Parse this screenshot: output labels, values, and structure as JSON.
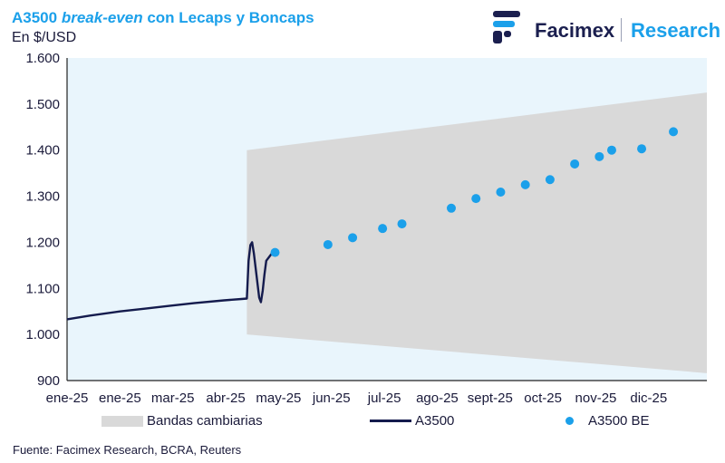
{
  "header": {
    "title_prefix": "A3500 ",
    "title_emph": "break-even",
    "title_suffix": " con Lecaps y Boncaps",
    "subtitle": "En $/USD"
  },
  "logo": {
    "brand": "Facimex",
    "research": "Research"
  },
  "source": "Fuente: Facimex Research, BCRA, Reuters",
  "legend": {
    "band": "Bandas cambiarias",
    "line": "A3500",
    "dots": "A3500 BE"
  },
  "colors": {
    "title": "#1ba0ea",
    "line": "#141b4d",
    "dots": "#1ba0ea",
    "band": "#d9d9d9",
    "plot_bg": "#e9f5fc"
  },
  "chart_data": {
    "type": "line",
    "ylim": [
      900,
      1600
    ],
    "yticks": [
      900,
      1000,
      1100,
      1200,
      1300,
      1400,
      1500,
      1600
    ],
    "ytick_labels": [
      "900",
      "1.000",
      "1.100",
      "1.200",
      "1.300",
      "1.400",
      "1.500",
      "1.600"
    ],
    "xlim": [
      "2025-01-02",
      "2025-12-31"
    ],
    "x_tick_labels": [
      "ene-25",
      "ene-25",
      "mar-25",
      "abr-25",
      "may-25",
      "jun-25",
      "jul-25",
      "ago-25",
      "sept-25",
      "oct-25",
      "nov-25",
      "dic-25"
    ],
    "x_tick_dates": [
      "2025-01-02",
      "2025-02-01",
      "2025-03-03",
      "2025-04-02",
      "2025-05-02",
      "2025-06-01",
      "2025-07-01",
      "2025-07-31",
      "2025-08-30",
      "2025-09-29",
      "2025-10-29",
      "2025-11-28"
    ],
    "grid": false,
    "legend_position": "bottom",
    "series": [
      {
        "name": "Bandas cambiarias",
        "kind": "band",
        "x": [
          "2025-04-14",
          "2025-12-31"
        ],
        "upper": [
          1400,
          1525
        ],
        "lower": [
          1000,
          916
        ]
      },
      {
        "name": "A3500",
        "kind": "line",
        "x": [
          "2025-01-02",
          "2025-01-15",
          "2025-02-01",
          "2025-02-15",
          "2025-03-01",
          "2025-03-15",
          "2025-04-01",
          "2025-04-11",
          "2025-04-14",
          "2025-04-15",
          "2025-04-16",
          "2025-04-17",
          "2025-04-18",
          "2025-04-21",
          "2025-04-22",
          "2025-04-23",
          "2025-04-24",
          "2025-04-25",
          "2025-04-28"
        ],
        "values": [
          1033,
          1041,
          1050,
          1056,
          1062,
          1068,
          1074,
          1077,
          1078,
          1160,
          1194,
          1200,
          1175,
          1080,
          1070,
          1095,
          1130,
          1160,
          1175
        ]
      },
      {
        "name": "A3500 BE",
        "kind": "scatter",
        "x": [
          "2025-04-30",
          "2025-05-30",
          "2025-06-13",
          "2025-06-30",
          "2025-07-11",
          "2025-08-08",
          "2025-08-22",
          "2025-09-05",
          "2025-09-19",
          "2025-10-03",
          "2025-10-17",
          "2025-10-31",
          "2025-11-07",
          "2025-11-24",
          "2025-12-12"
        ],
        "values": [
          1178,
          1195,
          1210,
          1230,
          1240,
          1274,
          1295,
          1309,
          1325,
          1336,
          1370,
          1386,
          1400,
          1403,
          1440
        ]
      }
    ]
  }
}
